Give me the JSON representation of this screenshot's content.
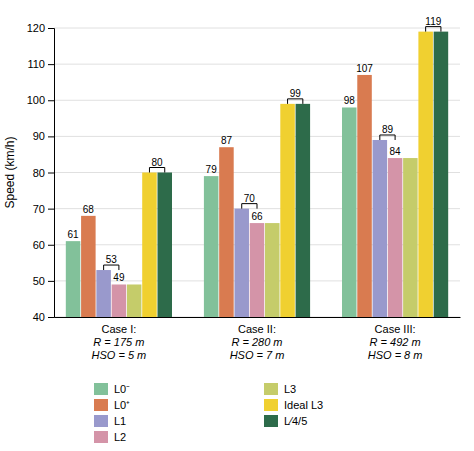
{
  "chart_data": {
    "type": "bar",
    "ylabel": "Speed (km/h)",
    "categories": [
      "Case I:\nR = 175 m\nHSO = 5 m",
      "Case II:\nR = 280 m\nHSO = 7 m",
      "Case III:\nR = 492 m\nHSO = 8 m"
    ],
    "series": [
      {
        "name": "L0⁻",
        "color": "#82c19a",
        "values": [
          61,
          79,
          98
        ],
        "data_labels": true
      },
      {
        "name": "L0⁺",
        "color": "#d97b50",
        "values": [
          68,
          87,
          107
        ],
        "data_labels": true
      },
      {
        "name": "L1",
        "color": "#9999cc",
        "values": [
          53,
          70,
          89
        ]
      },
      {
        "name": "L2",
        "color": "#d494a8",
        "values": [
          49,
          66,
          84
        ],
        "data_labels": true
      },
      {
        "name": "L3",
        "color": "#c5cc6a",
        "values": [
          49,
          66,
          84
        ]
      },
      {
        "name": "Ideal L3",
        "color": "#f0d030",
        "values": [
          80,
          99,
          119
        ]
      },
      {
        "name": "L⁄4/5",
        "color": "#2d6b4a",
        "values": [
          80,
          99,
          119
        ]
      }
    ],
    "annotations": [
      {
        "text": "53",
        "y": 53,
        "x": "Case I:\nR = 175 m\nHSO = 5 m",
        "series": [
          "L1",
          "L2"
        ]
      },
      {
        "text": "70",
        "y": 70,
        "x": "Case II:\nR = 280 m\nHSO = 7 m",
        "series": [
          "L1",
          "L2"
        ]
      },
      {
        "text": "89",
        "y": 89,
        "x": "Case III:\nR = 492 m\nHSO = 8 m",
        "series": [
          "L1",
          "L2"
        ]
      },
      {
        "text": "80",
        "y": 80,
        "x": "Case I:\nR = 175 m\nHSO = 5 m",
        "series": [
          "Ideal L3",
          "L⁄4/5"
        ]
      },
      {
        "text": "99",
        "y": 99,
        "x": "Case II:\nR = 280 m\nHSO = 7 m",
        "series": [
          "Ideal L3",
          "L⁄4/5"
        ]
      },
      {
        "text": "119",
        "y": 119,
        "x": "Case III:\nR = 492 m\nHSO = 8 m",
        "series": [
          "Ideal L3",
          "L⁄4/5"
        ]
      }
    ],
    "ylim": [
      40,
      120
    ],
    "yticks": [
      40,
      50,
      60,
      70,
      80,
      90,
      100,
      110,
      120
    ],
    "grid": true,
    "legend": "bottom"
  }
}
